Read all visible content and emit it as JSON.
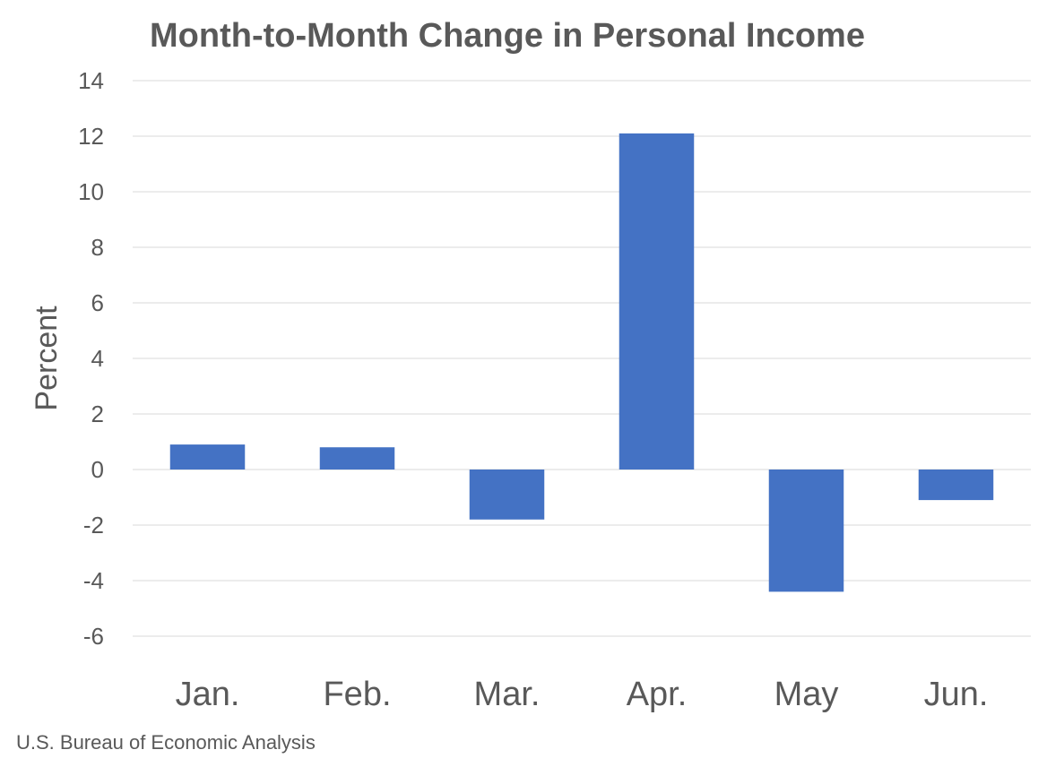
{
  "chart_data": {
    "type": "bar",
    "title": "Month-to-Month Change in Personal Income",
    "ylabel": "Percent",
    "xlabel": "",
    "categories": [
      "Jan.",
      "Feb.",
      "Mar.",
      "Apr.",
      "May",
      "Jun."
    ],
    "values": [
      0.9,
      0.8,
      -1.8,
      12.1,
      -4.4,
      -1.1
    ],
    "ylim": [
      -6,
      14
    ],
    "yticks": [
      14,
      12,
      10,
      8,
      6,
      4,
      2,
      0,
      -2,
      -4,
      -6
    ],
    "grid": true,
    "legend": "none",
    "colors": {
      "bar": "#4472c4",
      "grid": "#d9d9d9",
      "text": "#595959"
    }
  },
  "source": "U.S. Bureau of Economic Analysis"
}
